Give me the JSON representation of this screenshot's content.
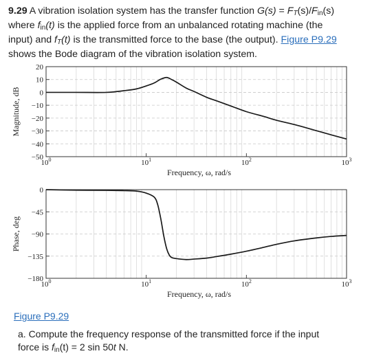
{
  "problem": {
    "number": "9.29",
    "t1": " A vibration isolation system has the transfer function ",
    "gs": "G(s)",
    "eq": " = ",
    "ft": "F",
    "ft_sub": "T",
    "s1": "(s)/",
    "fin": "F",
    "fin_sub": "in",
    "s2": "(s)",
    "l2a": "where ",
    "fin2": "f",
    "fin2_sub": "in",
    "fin2_arg": "(t)",
    "l2b": " is the applied force from an unbalanced rotating machine (the",
    "l3a": "input) and ",
    "ft2": "f",
    "ft2_sub": "T",
    "ft2_arg": "(t)",
    "l3b": " is the transmitted force to the base (the output). ",
    "link": "Figure P9.29",
    "l4": "shows the Bode diagram of the vibration isolation system."
  },
  "figure_caption": "Figure P9.29",
  "question": {
    "a": "a. Compute the frequency response of the transmitted force if the input",
    "b1": "force is ",
    "f": "f",
    "f_sub": "in",
    "b2": "(t) = 2 sin 50",
    "t": "t",
    "b3": " N."
  },
  "chart_data": [
    {
      "type": "line",
      "ylabel": "Magnitude, dB",
      "xlabel": "Frequency, ω, rad/s",
      "xscale": "log",
      "xlim": [
        1,
        1000
      ],
      "ylim": [
        -50,
        20
      ],
      "yticks": [
        "20",
        "10",
        "0",
        "−10",
        "−20",
        "−30",
        "−40",
        "−50"
      ],
      "xticks": [
        {
          "base": "10",
          "exp": "0"
        },
        {
          "base": "10",
          "exp": "1"
        },
        {
          "base": "10",
          "exp": "2"
        },
        {
          "base": "10",
          "exp": "3"
        }
      ],
      "grid": true,
      "series": [
        {
          "x": [
            1,
            2,
            4,
            6,
            8,
            10,
            12,
            14,
            16,
            18,
            20,
            25,
            30,
            40,
            50,
            70,
            100,
            150,
            200,
            300,
            500,
            700,
            1000
          ],
          "y": [
            0,
            0,
            0,
            1.3,
            2.7,
            5,
            7.3,
            10.3,
            11.6,
            9.9,
            8,
            3.4,
            0.7,
            -3.8,
            -6.5,
            -10.6,
            -15,
            -18.8,
            -21.7,
            -25,
            -29.8,
            -33,
            -36.3
          ]
        }
      ]
    },
    {
      "type": "line",
      "ylabel": "Phase, deg",
      "xlabel": "Frequency, ω, rad/s",
      "xscale": "log",
      "xlim": [
        1,
        1000
      ],
      "ylim": [
        -180,
        0
      ],
      "yticks": [
        "0",
        "−45",
        "−90",
        "−135",
        "−180"
      ],
      "xticks": [
        {
          "base": "10",
          "exp": "0"
        },
        {
          "base": "10",
          "exp": "1"
        },
        {
          "base": "10",
          "exp": "2"
        },
        {
          "base": "10",
          "exp": "3"
        }
      ],
      "grid": true,
      "series": [
        {
          "x": [
            1,
            2,
            4,
            6,
            8,
            10,
            12,
            13,
            14,
            15,
            16,
            17,
            18,
            20,
            25,
            30,
            40,
            50,
            70,
            100,
            150,
            200,
            300,
            500,
            700,
            1000
          ],
          "y": [
            0,
            -1,
            -1.5,
            -2,
            -3,
            -7,
            -15,
            -30,
            -60,
            -95,
            -120,
            -133,
            -138,
            -140,
            -142,
            -141,
            -139,
            -136,
            -131,
            -125,
            -117,
            -111,
            -104,
            -98,
            -95,
            -93
          ]
        }
      ]
    }
  ]
}
